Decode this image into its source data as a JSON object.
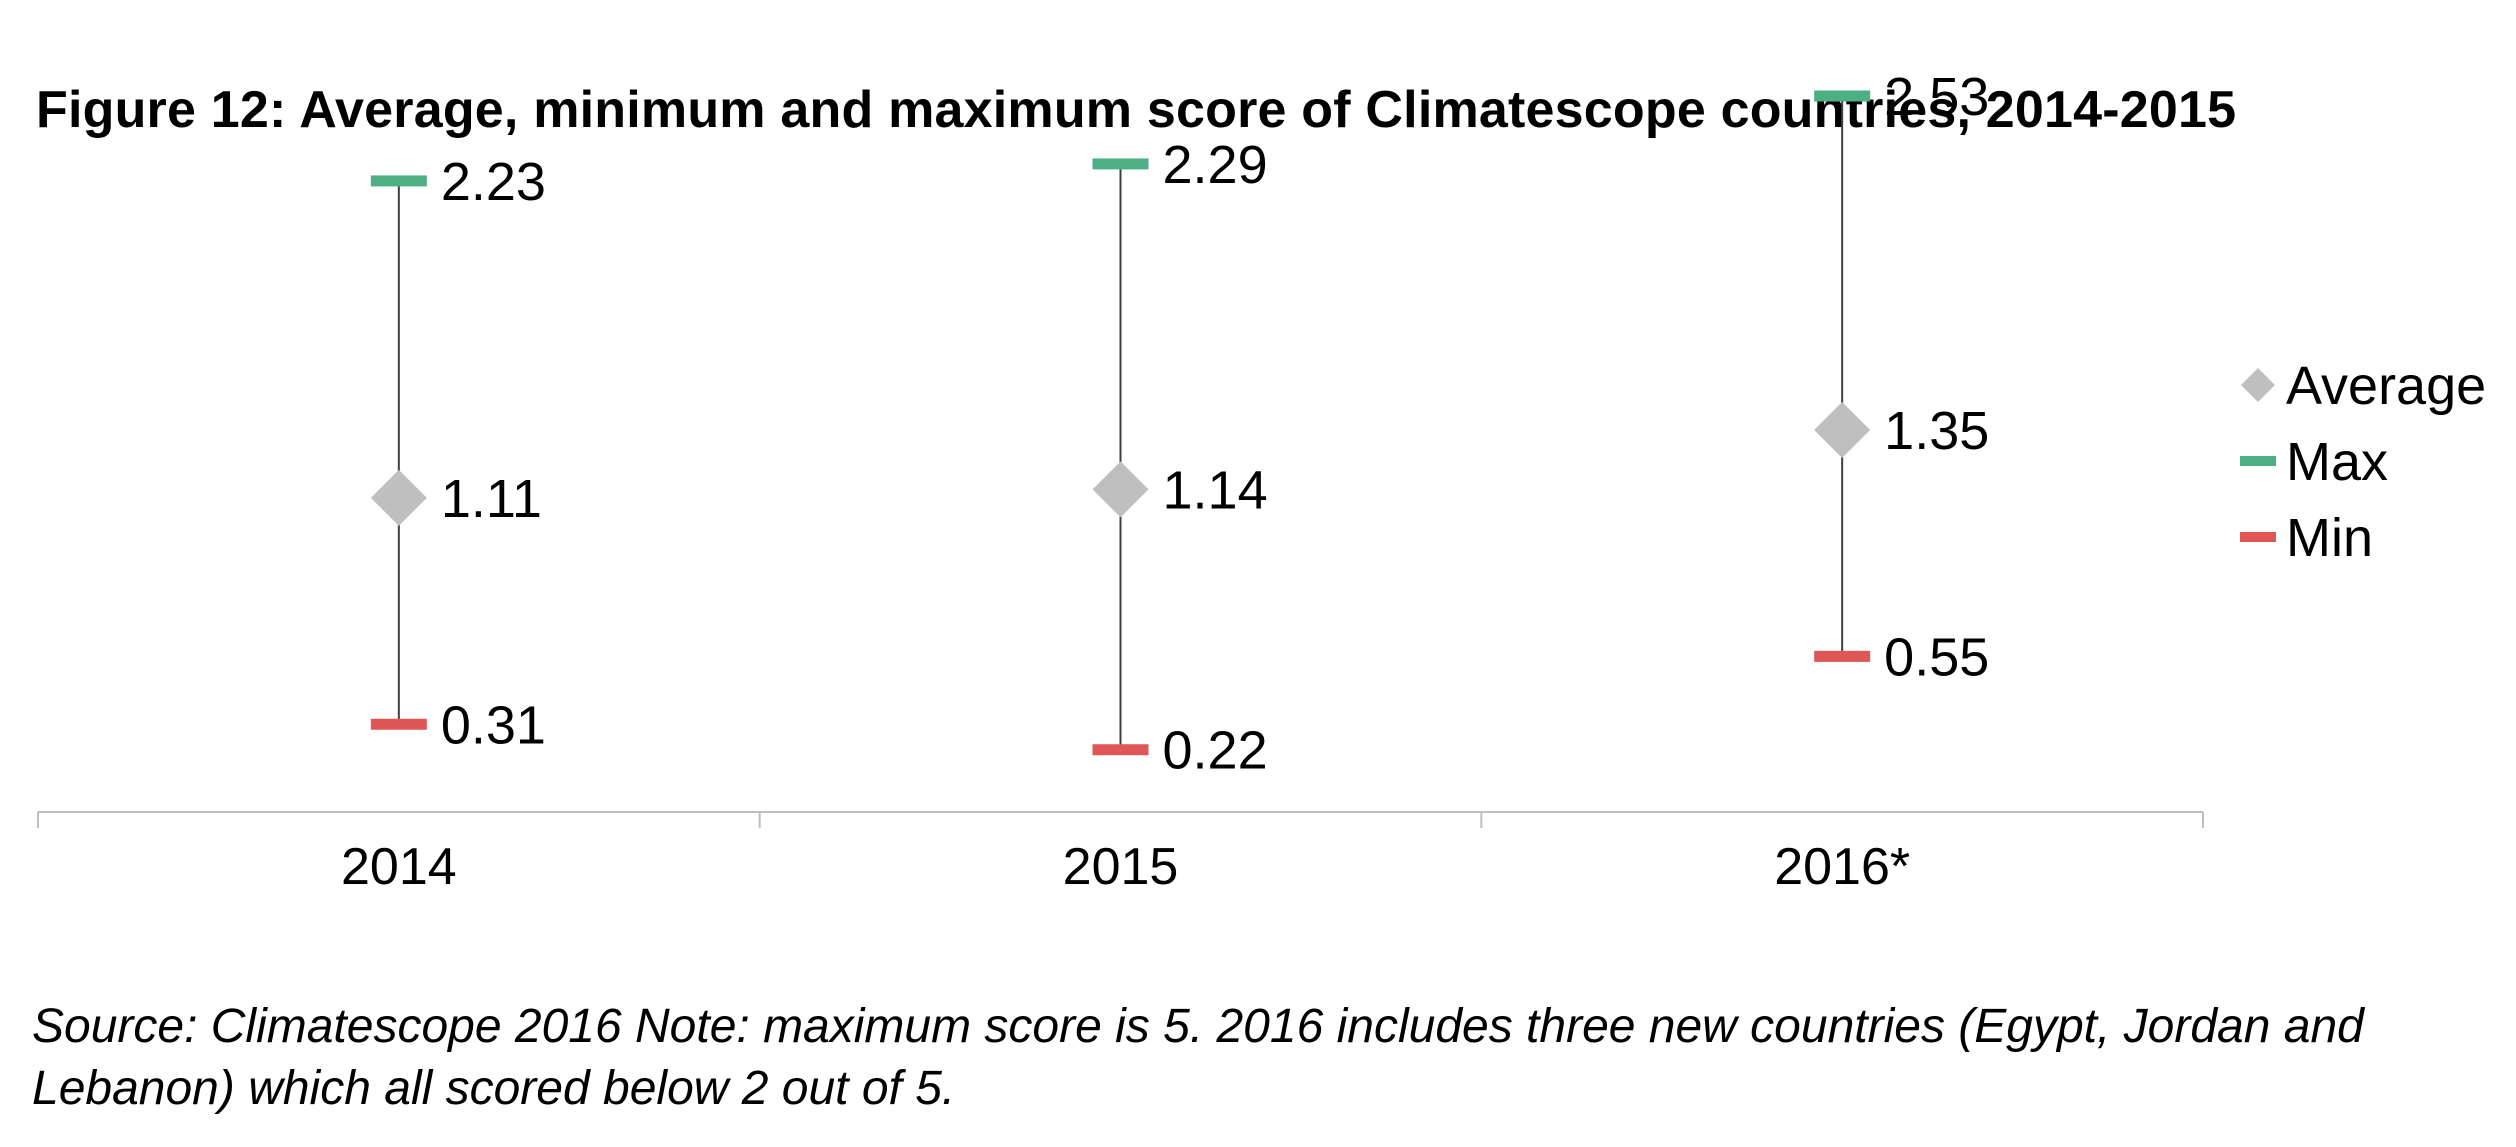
{
  "chart_data": {
    "type": "scatter",
    "title": "Figure 12: Average, minimum and maximum score of Climatescope countries, 2014-2015",
    "xlabel": "",
    "ylabel": "",
    "categories": [
      "2014",
      "2015",
      "2016*"
    ],
    "series": [
      {
        "name": "Average",
        "values": [
          1.11,
          1.14,
          1.35
        ],
        "color": "#bfbfbf",
        "marker": "diamond"
      },
      {
        "name": "Max",
        "values": [
          2.23,
          2.29,
          2.53
        ],
        "color": "#4daf84",
        "marker": "dash"
      },
      {
        "name": "Min",
        "values": [
          0.31,
          0.22,
          0.55
        ],
        "color": "#e05555",
        "marker": "dash"
      }
    ],
    "data_labels": {
      "Average": [
        "1.11",
        "1.14",
        "1.35"
      ],
      "Max": [
        "2.23",
        "2.29",
        "2.53"
      ],
      "Min": [
        "0.31",
        "0.22",
        "0.55"
      ]
    },
    "ylim": [
      0,
      2.5
    ],
    "grid": false,
    "legend_position": "right",
    "range_line_color": "#404040",
    "axis_color": "#bfbfbf"
  },
  "footnote": "Source: Climatescope 2016 Note: maximum score is 5. 2016 includes three new countries (Egypt, Jordan and Lebanon) which all scored below 2 out of 5."
}
